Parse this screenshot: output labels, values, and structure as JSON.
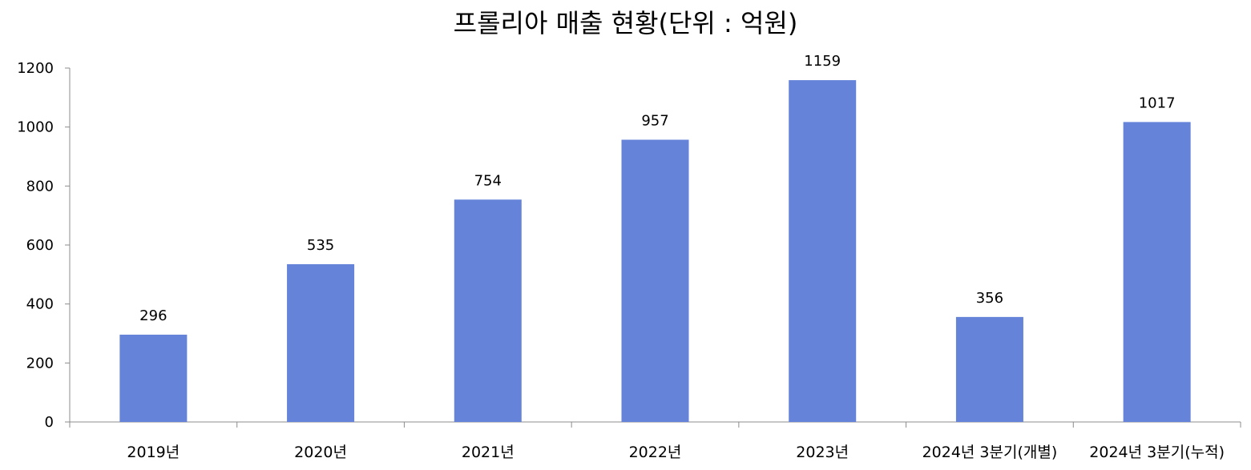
{
  "chart_data": {
    "type": "bar",
    "title": "프롤리아 매출 현황(단위 : 억원)",
    "categories": [
      "2019년",
      "2020년",
      "2021년",
      "2022년",
      "2023년",
      "2024년 3분기(개별)",
      "2024년 3분기(누적)"
    ],
    "values": [
      296,
      535,
      754,
      957,
      1159,
      356,
      1017
    ],
    "yticks": [
      "0",
      "200",
      "400",
      "600",
      "800",
      "1000",
      "1200"
    ],
    "ylim": [
      0,
      1200
    ],
    "grid": false,
    "legend": "none",
    "colors": {
      "bar": "#6483D9",
      "axis": "#8C8C8C",
      "text": "#000000"
    }
  }
}
